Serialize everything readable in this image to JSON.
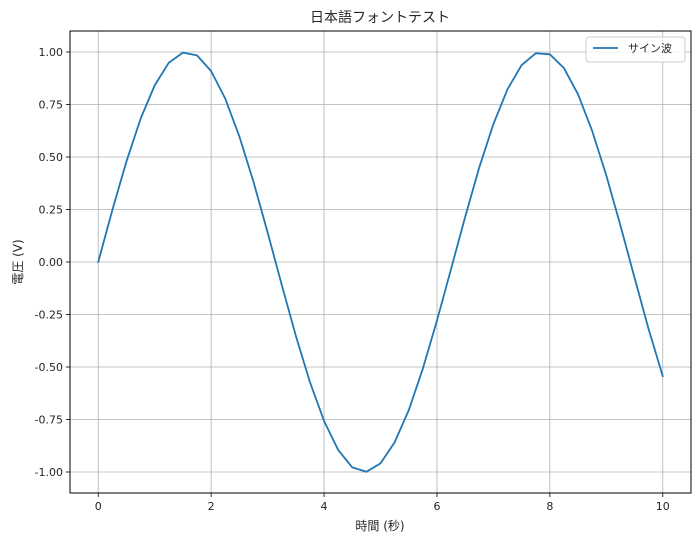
{
  "chart_data": {
    "type": "line",
    "title": "日本語フォントテスト",
    "xlabel": "時間 (秒)",
    "ylabel": "電圧 (V)",
    "xlim": [
      -0.5,
      10.5
    ],
    "ylim": [
      -1.1,
      1.1
    ],
    "xticks": [
      0,
      2,
      4,
      6,
      8,
      10
    ],
    "xtick_labels": [
      "0",
      "2",
      "4",
      "6",
      "8",
      "10"
    ],
    "yticks": [
      -1.0,
      -0.75,
      -0.5,
      -0.25,
      0.0,
      0.25,
      0.5,
      0.75,
      1.0
    ],
    "ytick_labels": [
      "-1.00",
      "-0.75",
      "-0.50",
      "-0.25",
      "0.00",
      "0.25",
      "0.50",
      "0.75",
      "1.00"
    ],
    "grid": true,
    "legend_position": "top-right",
    "series": [
      {
        "name": "サイン波",
        "color": "#1f77b4",
        "x": [
          0,
          0.25,
          0.5,
          0.75,
          1,
          1.25,
          1.5,
          1.75,
          2,
          2.25,
          2.5,
          2.75,
          3,
          3.25,
          3.5,
          3.75,
          4,
          4.25,
          4.5,
          4.75,
          5,
          5.25,
          5.5,
          5.75,
          6,
          6.25,
          6.5,
          6.75,
          7,
          7.25,
          7.5,
          7.75,
          8,
          8.25,
          8.5,
          8.75,
          9,
          9.25,
          9.5,
          9.75,
          10
        ],
        "y": [
          0.0,
          0.247,
          0.479,
          0.682,
          0.841,
          0.949,
          0.997,
          0.984,
          0.909,
          0.778,
          0.598,
          0.382,
          0.141,
          -0.108,
          -0.351,
          -0.572,
          -0.757,
          -0.895,
          -0.978,
          -0.999,
          -0.959,
          -0.859,
          -0.706,
          -0.508,
          -0.279,
          -0.033,
          0.215,
          0.451,
          0.657,
          0.823,
          0.938,
          0.994,
          0.989,
          0.923,
          0.798,
          0.624,
          0.412,
          0.174,
          -0.075,
          -0.32,
          -0.544
        ]
      }
    ]
  }
}
